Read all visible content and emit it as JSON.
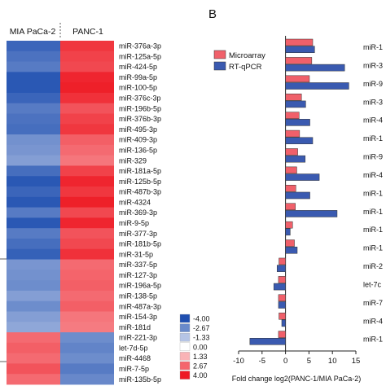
{
  "panel_label_b": "B",
  "chart_data": [
    {
      "type": "heatmap",
      "columns": [
        "MIA PaCa-2",
        "PANC-1"
      ],
      "rows": [
        "miR-376a-3p",
        "miR-125a-5p",
        "miR-424-5p",
        "miR-99a-5p",
        "miR-100-5p",
        "miR-376c-3p",
        "miR-196b-5p",
        "miR-376b-3p",
        "miR-495-3p",
        "miR-409-3p",
        "miR-136-5p",
        "miR-329",
        "miR-181a-5p",
        "miR-125b-5p",
        "miR-487b-3p",
        "miR-4324",
        "miR-369-3p",
        "miR-9-5p",
        "miR-377-3p",
        "miR-181b-5p",
        "miR-31-5p",
        "miR-337-5p",
        "miR-127-3p",
        "miR-196a-5p",
        "miR-138-5p",
        "miR-487a-3p",
        "miR-154-3p",
        "miR-181d",
        "miR-221-3p",
        "let-7d-5p",
        "miR-4468",
        "miR-7-5p",
        "miR-135b-5p"
      ],
      "values": [
        [
          -3.5,
          3.5
        ],
        [
          -3.2,
          3.3
        ],
        [
          -3.0,
          3.2
        ],
        [
          -3.8,
          3.8
        ],
        [
          -3.8,
          3.9
        ],
        [
          -3.5,
          3.6
        ],
        [
          -3.0,
          3.0
        ],
        [
          -3.2,
          3.3
        ],
        [
          -3.3,
          3.5
        ],
        [
          -2.5,
          2.8
        ],
        [
          -2.4,
          2.6
        ],
        [
          -2.2,
          2.4
        ],
        [
          -3.3,
          3.3
        ],
        [
          -3.8,
          3.8
        ],
        [
          -3.5,
          3.5
        ],
        [
          -3.8,
          3.9
        ],
        [
          -3.0,
          3.2
        ],
        [
          -3.8,
          3.8
        ],
        [
          -3.0,
          3.0
        ],
        [
          -3.3,
          3.2
        ],
        [
          -3.6,
          3.6
        ],
        [
          -2.4,
          2.6
        ],
        [
          -2.5,
          2.7
        ],
        [
          -2.6,
          2.8
        ],
        [
          -2.2,
          2.6
        ],
        [
          -2.6,
          2.8
        ],
        [
          -2.2,
          2.4
        ],
        [
          -2.0,
          2.3
        ],
        [
          2.6,
          -2.6
        ],
        [
          2.8,
          -2.8
        ],
        [
          2.6,
          -2.6
        ],
        [
          3.0,
          -3.0
        ],
        [
          2.6,
          -2.7
        ]
      ],
      "legend_ticks": [
        "-4.00",
        "-2.67",
        "-1.33",
        "0.00",
        "1.33",
        "2.67",
        "4.00"
      ],
      "colors": {
        "low": "#1f4fb0",
        "mid": "#ffffff",
        "high": "#ee1a24"
      },
      "range": [
        -4,
        4
      ]
    },
    {
      "type": "bar",
      "orientation": "horizontal",
      "categories": [
        "miR-1",
        "miR-3",
        "miR-9",
        "miR-3",
        "miR-4",
        "miR-1",
        "miR-9",
        "miR-4",
        "miR-1",
        "miR-1",
        "miR-1",
        "miR-1",
        "miR-2",
        "let-7c",
        "miR-7",
        "miR-4",
        "miR-1"
      ],
      "series": [
        {
          "name": "Microarray",
          "color": "#f0606a",
          "values": [
            5.8,
            5.6,
            5.1,
            3.4,
            2.9,
            3.0,
            2.6,
            2.4,
            2.2,
            2.1,
            1.5,
            1.9,
            -1.4,
            -1.5,
            -1.5,
            -1.4,
            -1.5
          ]
        },
        {
          "name": "RT-qPCR",
          "color": "#3a5ab0",
          "values": [
            6.2,
            12.6,
            13.5,
            4.3,
            5.2,
            5.8,
            4.2,
            7.2,
            5.2,
            11.0,
            1.0,
            2.5,
            -1.8,
            -2.5,
            -1.5,
            -0.8,
            -7.6
          ]
        }
      ],
      "xlabel": "Fold change log2(PANC-1/MIA PaCa-2)",
      "xticks": [
        -10,
        -5,
        0,
        5,
        10,
        15
      ],
      "xlim": [
        -10,
        15
      ],
      "legend_position": "top-left"
    }
  ]
}
